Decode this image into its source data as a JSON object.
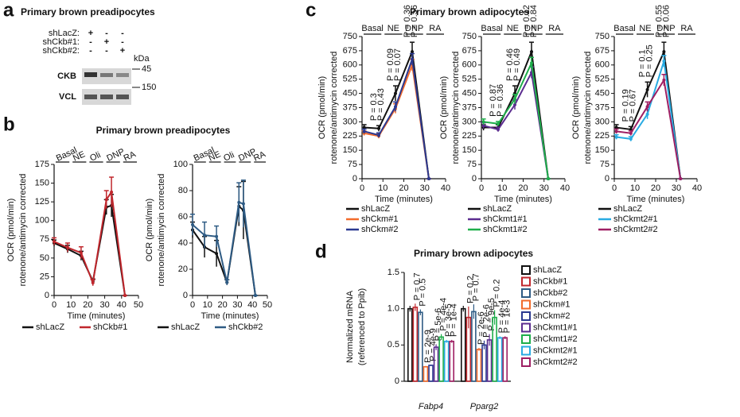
{
  "panel_letters": [
    "a",
    "b",
    "c",
    "d"
  ],
  "blot": {
    "title": "Primary brown preadipocytes",
    "rows": [
      {
        "label": "shLacZ:",
        "signs": [
          "+",
          "-",
          "-"
        ]
      },
      {
        "label": "shCkb#1:",
        "signs": [
          "-",
          "+",
          "-"
        ]
      },
      {
        "label": "shCkb#2:",
        "signs": [
          "-",
          "-",
          "+"
        ]
      }
    ],
    "unit": "kDa",
    "bands": [
      {
        "name": "CKB",
        "marker": "45"
      },
      {
        "name": "VCL",
        "marker": "150"
      }
    ]
  },
  "chart_data": [
    {
      "type": "line",
      "title": "Primary brown preadipocytes",
      "phases": [
        "Basal",
        "NE",
        "Oli",
        "DNP",
        "RA"
      ],
      "ylabel": [
        "OCR (pmol/min)",
        "rotenone/antimycin corrected"
      ],
      "xlabel": "Time (minutes)",
      "x": [
        0,
        8,
        16,
        23,
        31,
        34,
        42
      ],
      "xlim": [
        0,
        50
      ],
      "xticks": [
        0,
        10,
        20,
        30,
        40,
        50
      ],
      "ylim": [
        0,
        175
      ],
      "yticks": [
        0,
        25,
        50,
        75,
        100,
        125,
        150,
        175
      ],
      "series": [
        {
          "name": "shLacZ",
          "color": "#111111",
          "values": [
            70,
            62,
            53,
            19,
            118,
            120,
            0
          ],
          "errors": [
            4,
            5,
            6,
            3,
            10,
            15,
            0
          ]
        },
        {
          "name": "shCkb#1",
          "color": "#c0272d",
          "values": [
            72,
            64,
            57,
            17,
            128,
            138,
            0
          ],
          "errors": [
            5,
            6,
            8,
            4,
            12,
            20,
            0
          ]
        }
      ]
    },
    {
      "type": "line",
      "phases": [
        "Basal",
        "NE",
        "Oli",
        "DNP",
        "RA"
      ],
      "ylabel": [
        "OCR (pmol/min)",
        "rotenone/antimycin corrected"
      ],
      "xlabel": "Time (minutes)",
      "x": [
        0,
        8,
        16,
        23,
        31,
        34,
        42
      ],
      "xlim": [
        0,
        50
      ],
      "xticks": [
        0,
        10,
        20,
        30,
        40,
        50
      ],
      "ylim": [
        0,
        100
      ],
      "yticks": [
        0,
        20,
        40,
        60,
        80,
        100
      ],
      "series": [
        {
          "name": "shLacZ",
          "color": "#111111",
          "values": [
            50,
            37,
            32,
            10,
            68,
            65,
            0
          ],
          "errors": [
            6,
            8,
            10,
            2,
            15,
            22,
            0
          ]
        },
        {
          "name": "shCkb#2",
          "color": "#2e5b84",
          "values": [
            54,
            46,
            45,
            10,
            71,
            70,
            0
          ],
          "errors": [
            8,
            10,
            8,
            2,
            15,
            18,
            0
          ]
        }
      ]
    },
    {
      "type": "line",
      "title": "Primary brown adipocytes",
      "phases": [
        "Basal",
        "NE",
        "DNP",
        "RA"
      ],
      "ylabel": [
        "OCR (pmol/min)",
        "rotenone/antimycin corrected"
      ],
      "xlabel": "Time (minutes)",
      "x": [
        1,
        8,
        16,
        24,
        32
      ],
      "xlim": [
        0,
        40
      ],
      "xticks": [
        0,
        10,
        20,
        30,
        40
      ],
      "ylim": [
        0,
        750
      ],
      "yticks": [
        0,
        75,
        150,
        225,
        300,
        375,
        450,
        525,
        600,
        675,
        750
      ],
      "series": [
        {
          "name": "shLacZ",
          "color": "#111111",
          "values": [
            270,
            265,
            450,
            670,
            0
          ],
          "errors": [
            15,
            15,
            40,
            50,
            0
          ]
        },
        {
          "name": "shCkm#1",
          "color": "#f26b2b",
          "values": [
            240,
            225,
            370,
            600,
            0
          ],
          "errors": [
            12,
            12,
            25,
            30,
            0
          ]
        },
        {
          "name": "shCkm#2",
          "color": "#2b3990",
          "values": [
            250,
            230,
            380,
            630,
            0
          ],
          "errors": [
            12,
            12,
            25,
            30,
            0
          ]
        }
      ],
      "annotations": [
        [
          "P = 0.3",
          "P = 0.43"
        ],
        [
          "P = 0.09",
          "P = 0.07"
        ],
        [
          "P = 0.36",
          "P = 0.56"
        ]
      ]
    },
    {
      "type": "line",
      "phases": [
        "Basal",
        "NE",
        "DNP",
        "RA"
      ],
      "ylabel": [
        "OCR (pmol/min)",
        "rotenone/antimycin corrected"
      ],
      "xlabel": "Time (minutes)",
      "x": [
        1,
        8,
        16,
        24,
        32
      ],
      "xlim": [
        0,
        40
      ],
      "xticks": [
        0,
        10,
        20,
        30,
        40
      ],
      "ylim": [
        0,
        750
      ],
      "yticks": [
        0,
        75,
        150,
        225,
        300,
        375,
        450,
        525,
        600,
        675,
        750
      ],
      "series": [
        {
          "name": "shLacZ",
          "color": "#111111",
          "values": [
            270,
            270,
            450,
            670,
            0
          ],
          "errors": [
            15,
            15,
            40,
            50,
            0
          ]
        },
        {
          "name": "shCkmt1#1",
          "color": "#5b2c8f",
          "values": [
            280,
            260,
            390,
            560,
            0
          ],
          "errors": [
            15,
            12,
            25,
            30,
            0
          ]
        },
        {
          "name": "shCkmt1#2",
          "color": "#1fae4b",
          "values": [
            300,
            290,
            420,
            610,
            0
          ],
          "errors": [
            15,
            12,
            25,
            30,
            0
          ]
        }
      ],
      "annotations": [
        [
          "P = 0.87",
          "P = 0.36"
        ],
        [
          "P = 0.46",
          "P = 0.49"
        ],
        [
          "P = 0.12",
          "P = 0.84"
        ]
      ]
    },
    {
      "type": "line",
      "phases": [
        "Basal",
        "NE",
        "DNP",
        "RA"
      ],
      "ylabel": [
        "OCR (pmol/min)",
        "rotenone/antimycin corrected"
      ],
      "xlabel": "Time (minutes)",
      "x": [
        1,
        8,
        16,
        24,
        32
      ],
      "xlim": [
        0,
        40
      ],
      "xticks": [
        0,
        10,
        20,
        30,
        40
      ],
      "ylim": [
        0,
        750
      ],
      "yticks": [
        0,
        75,
        150,
        225,
        300,
        375,
        450,
        525,
        600,
        675,
        750
      ],
      "series": [
        {
          "name": "shLacZ",
          "color": "#111111",
          "values": [
            270,
            260,
            470,
            670,
            0
          ],
          "errors": [
            15,
            15,
            40,
            50,
            0
          ]
        },
        {
          "name": "shCkmt2#1",
          "color": "#29abe2",
          "values": [
            220,
            210,
            340,
            620,
            0
          ],
          "errors": [
            12,
            12,
            25,
            30,
            0
          ]
        },
        {
          "name": "shCkmt2#2",
          "color": "#9e1f63",
          "values": [
            250,
            240,
            380,
            520,
            0
          ],
          "errors": [
            12,
            12,
            25,
            30,
            0
          ]
        }
      ],
      "annotations": [
        [
          "P = 0.19",
          "P = 0.67"
        ],
        [
          "P = 0.1",
          "P = 0.25"
        ],
        [
          "P = 0.55",
          "P = 0.06"
        ]
      ]
    },
    {
      "type": "bar",
      "title": "Primary brown adipocytes",
      "ylabel": [
        "Normalized mRNA",
        "(referenced to Ppib)"
      ],
      "categories": [
        "Fabp4",
        "Pparg2"
      ],
      "ylim": [
        0,
        1.5
      ],
      "yticks": [
        0,
        0.5,
        {
          "value": 1.0,
          "label": "1.0"
        },
        1.5
      ],
      "series": [
        {
          "name": "shLacZ",
          "color": "#111111",
          "values": [
            1.0,
            1.0
          ],
          "errors": [
            0.04,
            0.04
          ]
        },
        {
          "name": "shCkb#1",
          "color": "#c0272d",
          "values": [
            1.02,
            0.88
          ],
          "errors": [
            0.05,
            0.15
          ],
          "p_values": [
            "P = 0.7",
            "P = 0.2"
          ]
        },
        {
          "name": "shCkb#2",
          "color": "#2e5b84",
          "values": [
            0.95,
            0.96
          ],
          "errors": [
            0.04,
            0.1
          ],
          "p_values": [
            "P = 0.5",
            "P = 0.7"
          ]
        },
        {
          "name": "shCkm#1",
          "color": "#f26b2b",
          "values": [
            0.2,
            0.44
          ],
          "errors": [
            0.01,
            0.02
          ],
          "p_values": [
            "P = 2e-9",
            "P = 2e-6"
          ]
        },
        {
          "name": "shCkm#2",
          "color": "#2b3990",
          "values": [
            0.22,
            0.5
          ],
          "errors": [
            0.01,
            0.06
          ],
          "p_values": [
            "P = 4e-9",
            "P = 2e-6"
          ]
        },
        {
          "name": "shCkmt1#1",
          "color": "#5b2c8f",
          "values": [
            0.47,
            0.57
          ],
          "errors": [
            0.04,
            0.08
          ],
          "p_values": [
            "P = 5e-6",
            "P = 9e-5"
          ]
        },
        {
          "name": "shCkmt1#2",
          "color": "#1fae4b",
          "values": [
            0.61,
            0.88
          ],
          "errors": [
            0.04,
            0.1
          ],
          "p_values": [
            "P = 4e-4",
            "P = 0.2"
          ]
        },
        {
          "name": "shCkmt2#1",
          "color": "#29abe2",
          "values": [
            0.55,
            0.6
          ],
          "errors": [
            0.02,
            0.02
          ],
          "p_values": [
            "P = 3e-5",
            "P = 4e-4"
          ]
        },
        {
          "name": "shCkmt2#2",
          "color": "#9e1f63",
          "values": [
            0.55,
            0.6
          ],
          "errors": [
            0.02,
            0.02
          ],
          "p_values": [
            "P = 1e-4",
            "P = 1e-3"
          ]
        }
      ]
    }
  ]
}
